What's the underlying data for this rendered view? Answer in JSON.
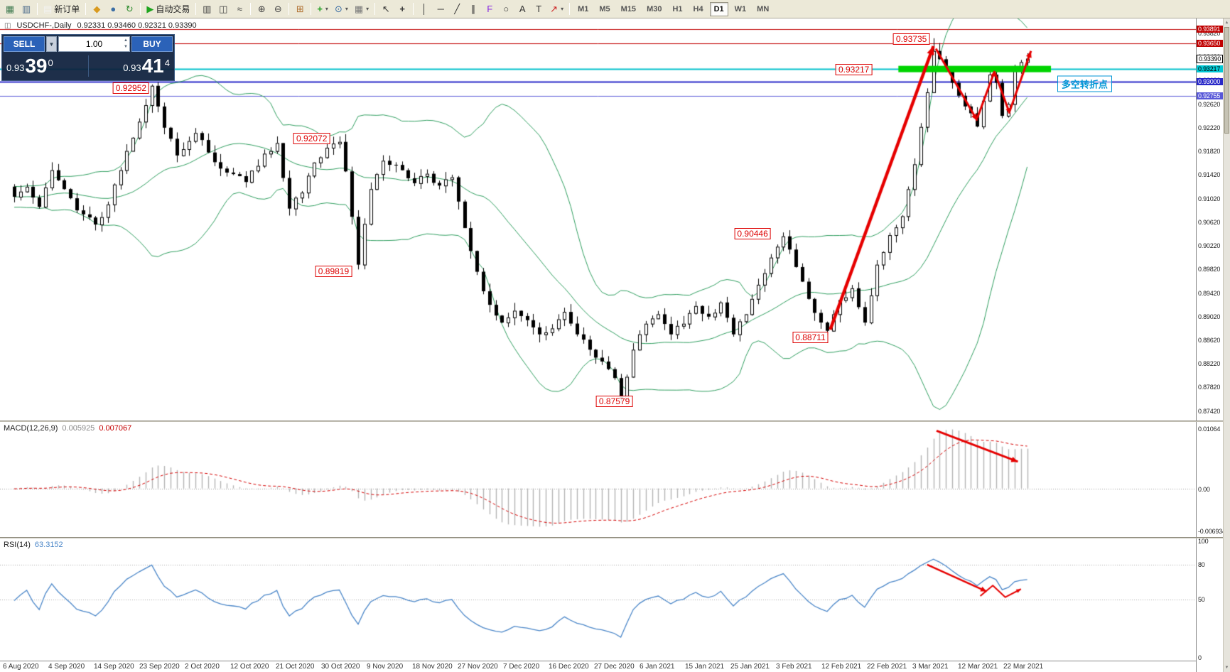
{
  "toolbar": {
    "notification": "1",
    "items": [
      {
        "k": "icon",
        "name": "new-chart",
        "g": "▦",
        "c": "#3f7a4f"
      },
      {
        "k": "icon",
        "name": "chart-list",
        "g": "▥",
        "c": "#4a6a8a"
      },
      {
        "k": "sep"
      },
      {
        "k": "btn",
        "name": "new-order",
        "g": "▤",
        "c": "#f2f2f2",
        "label": "新订单"
      },
      {
        "k": "sep"
      },
      {
        "k": "icon",
        "name": "favorites",
        "g": "◆",
        "c": "#d99a1f"
      },
      {
        "k": "icon",
        "name": "accounts",
        "g": "●",
        "c": "#3b6ea5"
      },
      {
        "k": "icon",
        "name": "refresh",
        "g": "↻",
        "c": "#2e8b2e"
      },
      {
        "k": "sep"
      },
      {
        "k": "btn",
        "name": "autotrade",
        "g": "▶",
        "c": "#1fa51f",
        "label": "自动交易"
      },
      {
        "k": "sep"
      },
      {
        "k": "icon",
        "name": "bar-chart",
        "g": "▥",
        "c": "#444444"
      },
      {
        "k": "icon",
        "name": "candle-chart",
        "g": "◫",
        "c": "#444444"
      },
      {
        "k": "icon",
        "name": "line-chart",
        "g": "≈",
        "c": "#444444"
      },
      {
        "k": "sep"
      },
      {
        "k": "icon",
        "name": "zoom-in",
        "g": "⊕",
        "c": "#444444"
      },
      {
        "k": "icon",
        "name": "zoom-out",
        "g": "⊖",
        "c": "#444444"
      },
      {
        "k": "sep"
      },
      {
        "k": "icon",
        "name": "arrange-windows",
        "g": "⊞",
        "c": "#b06f2f"
      },
      {
        "k": "sep"
      },
      {
        "k": "icon",
        "name": "add-indicator",
        "g": "+",
        "c": "#1e9e1e",
        "dd": true
      },
      {
        "k": "icon",
        "name": "periods-menu",
        "g": "⊙",
        "c": "#3b6ea5",
        "dd": true
      },
      {
        "k": "icon",
        "name": "templates-menu",
        "g": "▦",
        "c": "#777777",
        "dd": true
      },
      {
        "k": "sep"
      },
      {
        "k": "icon",
        "name": "cursor",
        "g": "↖",
        "c": "#333333"
      },
      {
        "k": "icon",
        "name": "crosshair",
        "g": "+",
        "c": "#333333"
      },
      {
        "k": "sep"
      },
      {
        "k": "icon",
        "name": "vertical-line",
        "g": "│",
        "c": "#333333"
      },
      {
        "k": "icon",
        "name": "horizontal-line",
        "g": "─",
        "c": "#333333"
      },
      {
        "k": "icon",
        "name": "trendline",
        "g": "╱",
        "c": "#333333"
      },
      {
        "k": "icon",
        "name": "channel",
        "g": "∥",
        "c": "#333333"
      },
      {
        "k": "icon",
        "name": "fibonacci",
        "g": "F",
        "c": "#8a2be2"
      },
      {
        "k": "icon",
        "name": "shapes",
        "g": "○",
        "c": "#333333"
      },
      {
        "k": "icon",
        "name": "text-tool",
        "g": "A",
        "c": "#333333"
      },
      {
        "k": "icon",
        "name": "label-tool",
        "g": "T",
        "c": "#333333"
      },
      {
        "k": "icon",
        "name": "arrows-tool",
        "g": "↗",
        "c": "#cc2222",
        "dd": true
      },
      {
        "k": "sep"
      }
    ],
    "timeframes": [
      {
        "label": "M1"
      },
      {
        "label": "M5"
      },
      {
        "label": "M15"
      },
      {
        "label": "M30"
      },
      {
        "label": "H1"
      },
      {
        "label": "H4"
      },
      {
        "label": "D1",
        "active": true
      },
      {
        "label": "W1"
      },
      {
        "label": "MN"
      }
    ]
  },
  "chart": {
    "symbol_period": "USDCHF-,Daily",
    "ohlc": "0.92331 0.93460 0.92321 0.93390"
  },
  "trade_panel": {
    "sell_label": "SELL",
    "buy_label": "BUY",
    "volume": "1.00",
    "sell_small": "0.93",
    "sell_big": "39",
    "sell_sup": "0",
    "buy_small": "0.93",
    "buy_big": "41",
    "buy_sup": "4"
  },
  "chart_data": {
    "type": "candlestick",
    "symbol": "USDCHF",
    "period": "Daily",
    "bar_count": 163,
    "seed": 20210322,
    "price_anchors": [
      [
        0,
        0.9105
      ],
      [
        2,
        0.9122
      ],
      [
        4,
        0.9088
      ],
      [
        6,
        0.915
      ],
      [
        8,
        0.9118
      ],
      [
        10,
        0.9082
      ],
      [
        13,
        0.9058
      ],
      [
        15,
        0.9092
      ],
      [
        17,
        0.915
      ],
      [
        19,
        0.9205
      ],
      [
        22,
        0.9293
      ],
      [
        24,
        0.9222
      ],
      [
        26,
        0.9175
      ],
      [
        29,
        0.9213
      ],
      [
        31,
        0.918
      ],
      [
        34,
        0.9146
      ],
      [
        37,
        0.913
      ],
      [
        40,
        0.9178
      ],
      [
        42,
        0.9196
      ],
      [
        44,
        0.9085
      ],
      [
        46,
        0.9112
      ],
      [
        48,
        0.9163
      ],
      [
        50,
        0.9188
      ],
      [
        52,
        0.9198
      ],
      [
        53,
        0.9148
      ],
      [
        55,
        0.899
      ],
      [
        57,
        0.9118
      ],
      [
        59,
        0.9166
      ],
      [
        62,
        0.915
      ],
      [
        64,
        0.9128
      ],
      [
        66,
        0.9144
      ],
      [
        68,
        0.9124
      ],
      [
        70,
        0.9138
      ],
      [
        72,
        0.9052
      ],
      [
        74,
        0.8978
      ],
      [
        76,
        0.8922
      ],
      [
        78,
        0.8892
      ],
      [
        80,
        0.8912
      ],
      [
        82,
        0.8896
      ],
      [
        84,
        0.8872
      ],
      [
        86,
        0.8882
      ],
      [
        88,
        0.891
      ],
      [
        90,
        0.8872
      ],
      [
        92,
        0.8846
      ],
      [
        94,
        0.8826
      ],
      [
        96,
        0.8798
      ],
      [
        97,
        0.8762
      ],
      [
        99,
        0.8846
      ],
      [
        101,
        0.889
      ],
      [
        103,
        0.8906
      ],
      [
        105,
        0.8872
      ],
      [
        107,
        0.889
      ],
      [
        109,
        0.892
      ],
      [
        111,
        0.8902
      ],
      [
        113,
        0.8926
      ],
      [
        115,
        0.8872
      ],
      [
        117,
        0.8906
      ],
      [
        119,
        0.8956
      ],
      [
        121,
        0.9002
      ],
      [
        123,
        0.9038
      ],
      [
        125,
        0.8986
      ],
      [
        127,
        0.8932
      ],
      [
        129,
        0.8892
      ],
      [
        130,
        0.8878
      ],
      [
        132,
        0.893
      ],
      [
        134,
        0.895
      ],
      [
        136,
        0.8892
      ],
      [
        138,
        0.899
      ],
      [
        140,
        0.904
      ],
      [
        142,
        0.9072
      ],
      [
        144,
        0.916
      ],
      [
        146,
        0.9282
      ],
      [
        147,
        0.9352
      ],
      [
        148,
        0.9338
      ],
      [
        150,
        0.9298
      ],
      [
        152,
        0.9258
      ],
      [
        154,
        0.9224
      ],
      [
        156,
        0.9312
      ],
      [
        157,
        0.9298
      ],
      [
        158,
        0.9242
      ],
      [
        159,
        0.9262
      ],
      [
        160,
        0.9318
      ],
      [
        162,
        0.9339
      ]
    ],
    "exact_highs": [
      [
        22,
        0.92952
      ],
      [
        52,
        0.92072
      ],
      [
        123,
        0.90446
      ],
      [
        147,
        0.93735
      ]
    ],
    "exact_lows": [
      [
        55,
        0.89819
      ],
      [
        97,
        0.87579
      ],
      [
        130,
        0.88711
      ]
    ],
    "bollinger": {
      "period": 20,
      "deviation": 2,
      "color": "#2f9e5f"
    },
    "hlines": [
      {
        "price": 0.93891,
        "color": "#c00000",
        "w": 1
      },
      {
        "price": 0.9365,
        "color": "#c00000",
        "w": 1
      },
      {
        "price": 0.93217,
        "color": "#00c0cc",
        "w": 2
      },
      {
        "price": 0.93,
        "color": "#2828c8",
        "w": 2
      },
      {
        "price": 0.92755,
        "color": "#5858d8",
        "w": 1
      }
    ],
    "green_zone": {
      "bar1": 141.4,
      "bar2": 165.8,
      "price": 0.93268,
      "height": 9,
      "color": "#00d400"
    },
    "arrows": [
      {
        "pts": [
          [
            130.5,
            0.888
          ],
          [
            147.0,
            0.936
          ]
        ],
        "w": 4.5,
        "head": 13
      },
      {
        "pts": [
          [
            147.4,
            0.9356
          ],
          [
            154.0,
            0.9234
          ]
        ],
        "w": 3,
        "head": 10
      },
      {
        "pts": [
          [
            154.0,
            0.9238
          ],
          [
            156.8,
            0.9318
          ]
        ],
        "w": 3,
        "head": 8
      },
      {
        "pts": [
          [
            156.8,
            0.9316
          ],
          [
            159.2,
            0.9246
          ]
        ],
        "w": 3,
        "head": 8
      },
      {
        "pts": [
          [
            159.2,
            0.925
          ],
          [
            162.6,
            0.9352
          ]
        ],
        "w": 3,
        "head": 10
      }
    ],
    "annotations": [
      {
        "text": "0.92952",
        "bar": 21.6,
        "price": 0.9289
      },
      {
        "text": "0.92072",
        "bar": 50.5,
        "price": 0.9204
      },
      {
        "text": "0.89819",
        "bar": 54.0,
        "price": 0.8979
      },
      {
        "text": "0.90446",
        "bar": 121.0,
        "price": 0.9042
      },
      {
        "text": "0.88711",
        "bar": 130.2,
        "price": 0.8867
      },
      {
        "text": "0.87579",
        "bar": 98.9,
        "price": 0.8758
      },
      {
        "text": "0.93735",
        "bar": 146.4,
        "price": 0.9372
      },
      {
        "text": "0.93217",
        "bar": 137.2,
        "price": 0.932
      }
    ],
    "note": {
      "text": "多空转折点",
      "bar": 166.8,
      "price": 0.9296
    },
    "grid_labels": [
      "0.93820",
      "0.93420",
      "0.93020",
      "0.92620",
      "0.92220",
      "0.91820",
      "0.91420",
      "0.91020",
      "0.90620",
      "0.90220",
      "0.89820",
      "0.89420",
      "0.89020",
      "0.88620",
      "0.88220",
      "0.87820",
      "0.87420"
    ],
    "tags": [
      {
        "text": "0.93891",
        "price": 0.93891,
        "bg": "#c00000",
        "fg": "#ffffff"
      },
      {
        "text": "0.93650",
        "price": 0.9365,
        "bg": "#c00000",
        "fg": "#ffffff"
      },
      {
        "text": "0.93390",
        "price": 0.9339,
        "bg": "#ffffff",
        "fg": "#000000",
        "border": "#000000"
      },
      {
        "text": "0.93217",
        "price": 0.93217,
        "bg": "#00c8d4",
        "fg": "#000000"
      },
      {
        "text": "0.93000",
        "price": 0.93,
        "bg": "#2828c8",
        "fg": "#ffffff"
      },
      {
        "text": "0.92755",
        "price": 0.92755,
        "bg": "#5858d8",
        "fg": "#ffffff"
      }
    ],
    "macd": {
      "label": "MACD(12,26,9)",
      "value_main": "0.005925",
      "value_signal": "0.007067",
      "axis_top": "0.01064",
      "axis_zero": "0.00",
      "axis_bottom": "-0.006934",
      "arrow": {
        "frac": [
          [
            147.5,
            0.95
          ],
          [
            160.5,
            0.44
          ]
        ],
        "w": 3,
        "head": 10
      }
    },
    "rsi": {
      "label": "RSI(14)",
      "value": "63.3152",
      "levels": [
        80,
        50
      ],
      "axis": [
        {
          "t": "100",
          "v": 100
        },
        {
          "t": "80",
          "v": 80
        },
        {
          "t": "50",
          "v": 50
        },
        {
          "t": "0",
          "v": 0
        }
      ],
      "arrows": [
        {
          "pts": [
            [
              146.0,
              80
            ],
            [
              155.5,
              57
            ]
          ],
          "w": 2.5,
          "head": 9
        },
        {
          "pts": [
            [
              154.5,
              53
            ],
            [
              156.5,
              62
            ],
            [
              158.5,
              52
            ],
            [
              161.0,
              59
            ]
          ],
          "w": 2,
          "head": 7
        }
      ]
    },
    "dates": [
      "6 Aug 2020",
      "4 Sep 2020",
      "14 Sep 2020",
      "23 Sep 2020",
      "2 Oct 2020",
      "12 Oct 2020",
      "21 Oct 2020",
      "30 Oct 2020",
      "9 Nov 2020",
      "18 Nov 2020",
      "27 Nov 2020",
      "7 Dec 2020",
      "16 Dec 2020",
      "27 Dec 2020",
      "6 Jan 2021",
      "15 Jan 2021",
      "25 Jan 2021",
      "3 Feb 2021",
      "12 Feb 2021",
      "22 Feb 2021",
      "3 Mar 2021",
      "12 Mar 2021",
      "22 Mar 2021"
    ]
  }
}
